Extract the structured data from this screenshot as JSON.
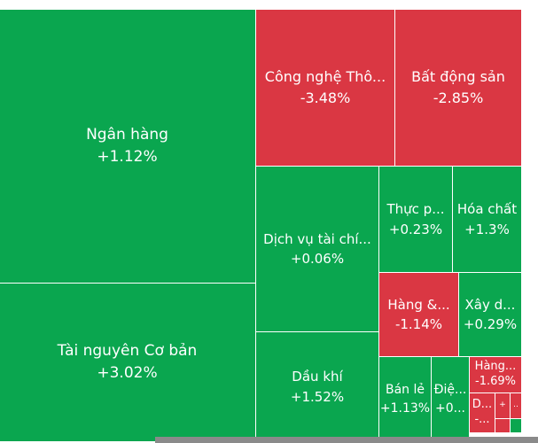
{
  "colors": {
    "up": "#0aa64f",
    "down": "#da3743"
  },
  "tiles": [
    {
      "id": "ngan-hang",
      "name": "Ngân hàng",
      "change": "+1.12%",
      "direction": "up"
    },
    {
      "id": "tai-nguyen",
      "name": "Tài nguyên Cơ bản",
      "change": "+3.02%",
      "direction": "up"
    },
    {
      "id": "cong-nghe",
      "name": "Công nghệ Thô...",
      "change": "-3.48%",
      "direction": "down"
    },
    {
      "id": "bat-dong-san",
      "name": "Bất động sản",
      "change": "-2.85%",
      "direction": "down"
    },
    {
      "id": "dich-vu-tai-chinh",
      "name": "Dịch vụ tài chí...",
      "change": "+0.06%",
      "direction": "up"
    },
    {
      "id": "thuc-pham",
      "name": "Thực p...",
      "change": "+0.23%",
      "direction": "up"
    },
    {
      "id": "hoa-chat",
      "name": "Hóa chất",
      "change": "+1.3%",
      "direction": "up"
    },
    {
      "id": "hang",
      "name": "Hàng &...",
      "change": "-1.14%",
      "direction": "down"
    },
    {
      "id": "xay-dung",
      "name": "Xây d...",
      "change": "+0.29%",
      "direction": "up"
    },
    {
      "id": "dau-khi",
      "name": "Dầu khí",
      "change": "+1.52%",
      "direction": "up"
    },
    {
      "id": "ban-le",
      "name": "Bán lẻ",
      "change": "+1.13%",
      "direction": "up"
    },
    {
      "id": "dien",
      "name": "Điệ...",
      "change": "+0...",
      "direction": "up"
    },
    {
      "id": "hang-2",
      "name": "Hàng...",
      "change": "-1.69%",
      "direction": "down"
    },
    {
      "id": "d-small",
      "name": "D...",
      "change": "-...",
      "direction": "down"
    },
    {
      "id": "plus-small",
      "name": "+",
      "change": "",
      "direction": "down"
    },
    {
      "id": "dots-small",
      "name": "..",
      "change": "",
      "direction": "down"
    }
  ]
}
